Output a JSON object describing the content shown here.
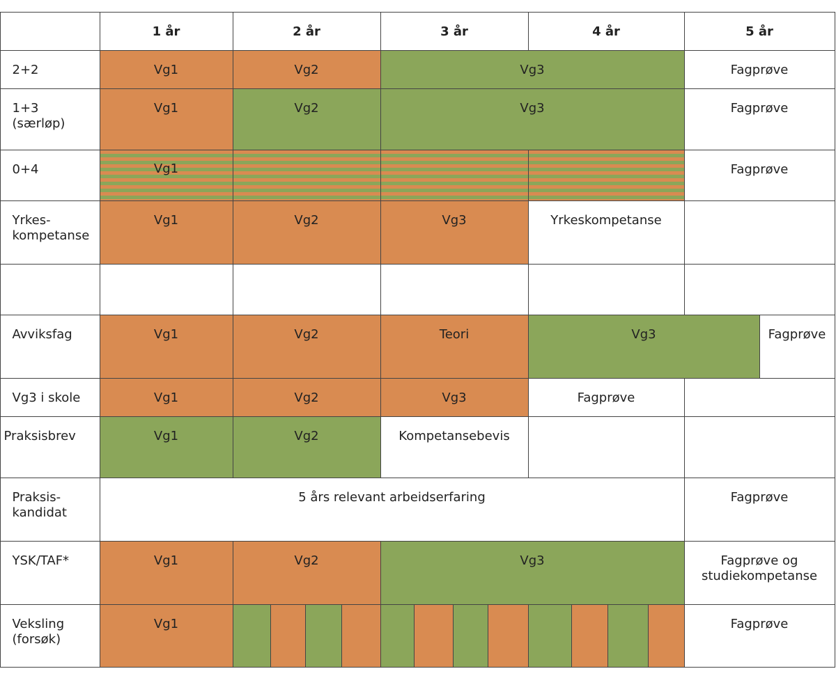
{
  "header": {
    "columns": [
      "1 år",
      "2 år",
      "3 år",
      "4 år",
      "5 år"
    ]
  },
  "rows": [
    {
      "label": "2+2",
      "cells": [
        "Vg1",
        "Vg2",
        "Vg3",
        "Fagprøve"
      ]
    },
    {
      "label": "1+3\n(særløp)",
      "cells": [
        "Vg1",
        "Vg2",
        "Vg3",
        "Fagprøve"
      ]
    },
    {
      "label": "0+4",
      "cells": [
        "Vg1",
        "Fagprøve"
      ]
    },
    {
      "label": "Yrkes-\nkompetanse",
      "cells": [
        "Vg1",
        "Vg2",
        "Vg3",
        "Yrkeskompetanse"
      ]
    },
    {
      "label": "Avviksfag",
      "cells": [
        "Vg1",
        "Vg2",
        "Teori",
        "Vg3",
        "Fagprøve"
      ]
    },
    {
      "label": "Vg3 i skole",
      "cells": [
        "Vg1",
        "Vg2",
        "Vg3",
        "Fagprøve"
      ]
    },
    {
      "label": "Praksisbrev",
      "cells": [
        "Vg1",
        "Vg2",
        "Kompetansebevis"
      ]
    },
    {
      "label": "Praksis-\nkandidat",
      "cells": [
        "5 års relevant arbeidserfaring",
        "Fagprøve"
      ]
    },
    {
      "label": "YSK/TAF*",
      "cells": [
        "Vg1",
        "Vg2",
        "Vg3",
        "Fagprøve og\nstudiekompetanse"
      ]
    },
    {
      "label": "Veksling\n(forsøk)",
      "cells": [
        "Vg1",
        "Fagprøve"
      ]
    }
  ]
}
